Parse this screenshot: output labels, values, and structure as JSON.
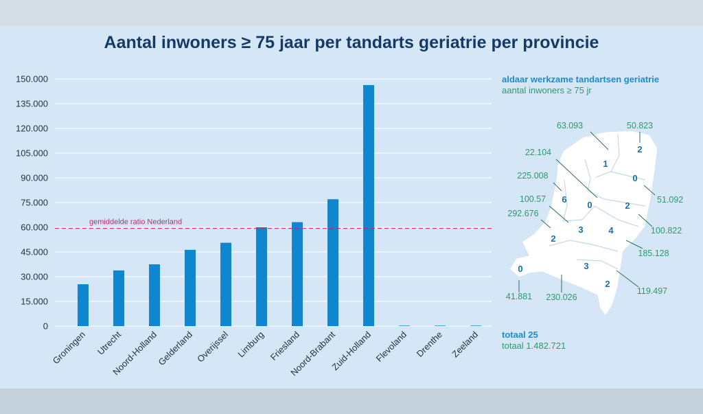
{
  "chart_data": {
    "type": "bar",
    "title": "Aantal inwoners ≥ 75 jaar per tandarts geriatrie per provincie",
    "xlabel": "",
    "ylabel": "",
    "ylim": [
      0,
      150000
    ],
    "yticks": [
      "0",
      "15.000",
      "30.000",
      "45.000",
      "60.000",
      "75.000",
      "90.000",
      "105.000",
      "120.000",
      "135.000",
      "150.000"
    ],
    "categories": [
      "Groningen",
      "Utrecht",
      "Noord-Holland",
      "Gelderland",
      "Overijssel",
      "Limburg",
      "Friesland",
      "Noord-Brabant",
      "Zuid-Holland",
      "Flevoland",
      "Drenthe",
      "Zeeland"
    ],
    "values": [
      25400,
      33800,
      37500,
      46300,
      50600,
      60000,
      63100,
      77000,
      146300,
      300,
      300,
      300
    ],
    "reference_line": {
      "value": 59300,
      "label": "gemiddelde ratio Nederland"
    },
    "bar_color": "#0f86cf"
  },
  "legend": {
    "title": "aldaar werkzame tandartsen geriatrie",
    "subtitle": "aantal inwoners ≥ 75 jr"
  },
  "map": {
    "provinces": [
      {
        "name": "Groningen",
        "dentists": "2",
        "residents": "50.823"
      },
      {
        "name": "Friesland",
        "dentists": "1",
        "residents": "63.093"
      },
      {
        "name": "Flevoland",
        "dentists": "0",
        "residents": "22.104"
      },
      {
        "name": "Noord-Holland",
        "dentists": "6",
        "residents": "225.008"
      },
      {
        "name": "Drenthe",
        "dentists": "0",
        "residents": "51.092"
      },
      {
        "name": "Overijssel",
        "dentists": "2",
        "residents": "100.822"
      },
      {
        "name": "Utrecht",
        "dentists": "3",
        "residents": "100.57"
      },
      {
        "name": "Zuid-Holland",
        "dentists": "2",
        "residents": "292.676"
      },
      {
        "name": "Gelderland",
        "dentists": "4",
        "residents": "185.128"
      },
      {
        "name": "Zeeland",
        "dentists": "0",
        "residents": "41.881"
      },
      {
        "name": "Noord-Brabant",
        "dentists": "3",
        "residents": "230.026"
      },
      {
        "name": "Limburg",
        "dentists": "2",
        "residents": "119.497"
      }
    ]
  },
  "totals": {
    "dentists": "totaal 25",
    "residents": "totaal 1.482.721"
  },
  "colors": {
    "background": "#d5e6f6",
    "title": "#153a66",
    "accent_blue": "#1b8ccd",
    "accent_green": "#2c9a6e",
    "reference_line": "#cc2277"
  }
}
